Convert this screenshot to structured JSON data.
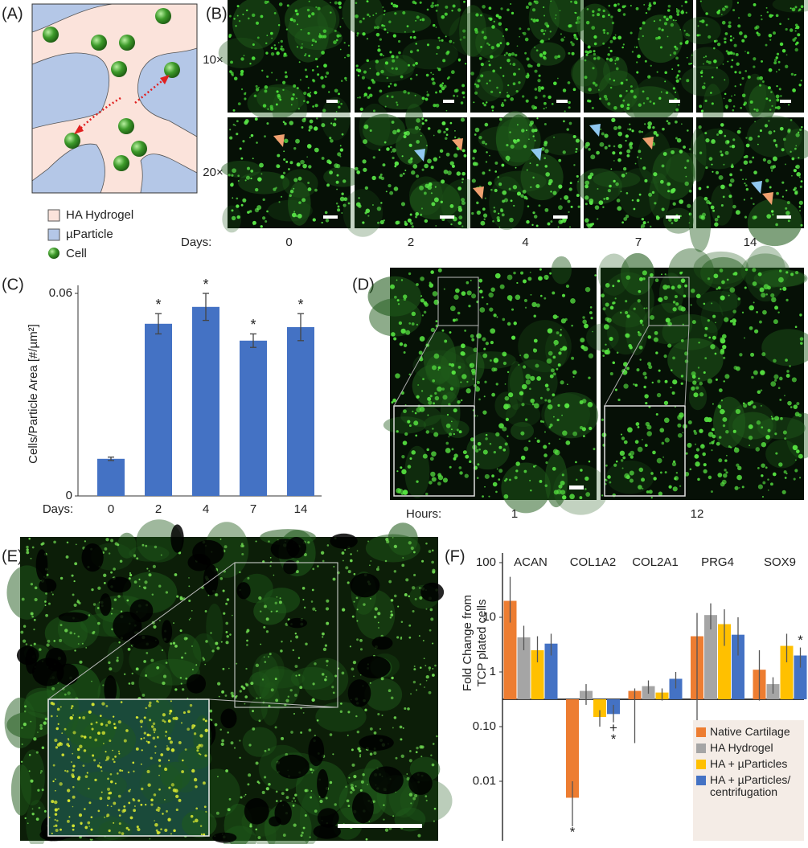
{
  "panel_labels": [
    "(A)",
    "(B)",
    "(C)",
    "(D)",
    "(E)",
    "(F)"
  ],
  "panel_a": {
    "legend": [
      "HA Hydrogel",
      "µParticle",
      "Cell"
    ]
  },
  "panel_b": {
    "magnifications": [
      "10×",
      "20×"
    ],
    "axis_label": "Days:",
    "days": [
      "0",
      "2",
      "4",
      "7",
      "14"
    ]
  },
  "panel_d": {
    "axis_label": "Hours:",
    "hours": [
      "1",
      "12"
    ]
  },
  "chart_data": [
    {
      "type": "bar",
      "y_label": "Cells/Particle Area [#/µm²]",
      "x_label": "Days:",
      "categories": [
        "0",
        "2",
        "4",
        "7",
        "14"
      ],
      "values": [
        0.011,
        0.051,
        0.056,
        0.046,
        0.05
      ],
      "errors": [
        0.0005,
        0.003,
        0.004,
        0.002,
        0.004
      ],
      "significance": [
        null,
        "*",
        "*",
        "*",
        "*"
      ],
      "color": "#4472c4",
      "ylim": [
        0,
        0.06
      ],
      "yticks": [
        0,
        0.06
      ]
    },
    {
      "type": "grouped_bar",
      "y_label": [
        "Fold Change from",
        "TCP plated cells"
      ],
      "log_scale": true,
      "categories": [
        "ACAN",
        "COL1A2",
        "COL2A1",
        "PRG4",
        "SOX9"
      ],
      "series": [
        {
          "name": "Native Cartilage",
          "color": "#ed7d31",
          "values": [
            20,
            0.005,
            0.45,
            4.5,
            1.1
          ],
          "whisker_low": [
            8,
            0.0015,
            0.05,
            0.03,
            0.3
          ],
          "whisker_high": [
            55,
            0.01,
            0.5,
            12,
            2.5
          ]
        },
        {
          "name": "HA Hydrogel",
          "color": "#a5a5a5",
          "values": [
            4.3,
            0.45,
            0.55,
            11,
            0.6
          ],
          "whisker_low": [
            2.5,
            0.25,
            0.4,
            6,
            0.4
          ],
          "whisker_high": [
            7,
            0.6,
            0.7,
            18,
            0.8
          ]
        },
        {
          "name": "HA + µParticles",
          "color": "#ffc000",
          "values": [
            2.5,
            0.15,
            0.42,
            7.5,
            3
          ],
          "whisker_low": [
            1.5,
            0.1,
            0.3,
            3,
            1.5
          ],
          "whisker_high": [
            4.5,
            0.2,
            0.5,
            14,
            5
          ]
        },
        {
          "name": "HA + µParticles/ centrifugation",
          "color": "#4472c4",
          "values": [
            3.3,
            0.17,
            0.75,
            4.8,
            2
          ],
          "whisker_low": [
            2,
            0.12,
            0.5,
            2,
            1.2
          ],
          "whisker_high": [
            5,
            0.25,
            1,
            10,
            2.8
          ]
        }
      ],
      "annotations": [
        {
          "text": "*",
          "series": 0,
          "category": 1,
          "position": "below"
        },
        {
          "text": "+",
          "series": 3,
          "category": 1,
          "position": "below"
        },
        {
          "text": "*",
          "series": 3,
          "category": 1,
          "position": "below"
        },
        {
          "text": "*",
          "series": 3,
          "category": 4,
          "position": "above"
        }
      ],
      "ylim": [
        0.001,
        150
      ],
      "yticks": [
        100,
        10,
        1,
        {
          "value": 0.1,
          "label": "0.10"
        },
        0.01
      ]
    }
  ]
}
